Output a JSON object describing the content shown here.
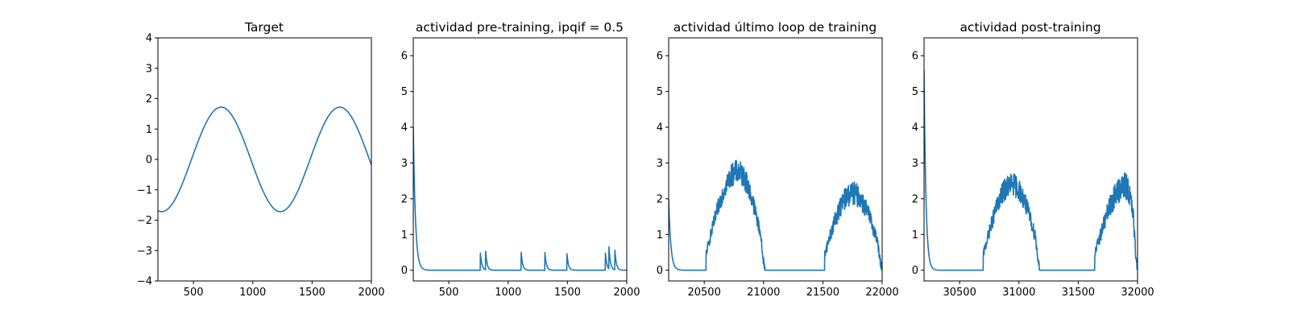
{
  "colors": {
    "line": "#1f77b4",
    "axes": "#000000",
    "background": "#ffffff"
  },
  "chart_data": [
    {
      "type": "line",
      "title": "Target",
      "xlabel": "",
      "ylabel": "",
      "xlim": [
        200,
        2000
      ],
      "ylim": [
        -4,
        4
      ],
      "xticks": [
        500,
        1000,
        1500,
        2000
      ],
      "yticks": [
        -4,
        -3,
        -2,
        -1,
        0,
        1,
        2,
        3,
        4
      ],
      "ytick_labels": [
        "−4",
        "−3",
        "−2",
        "−1",
        "0",
        "1",
        "2",
        "3",
        "4"
      ],
      "grid": false,
      "series": [
        {
          "kind": "sine",
          "amplitude": 1.72,
          "period": 1000,
          "peaks_at": [
            733,
            1733
          ],
          "troughs_at": [
            233,
            1233
          ]
        }
      ]
    },
    {
      "type": "line",
      "title": "actividad pre-training, ipqif = 0.5",
      "xlabel": "",
      "ylabel": "",
      "xlim": [
        200,
        2000
      ],
      "ylim": [
        -0.3,
        6.5
      ],
      "xticks": [
        500,
        1000,
        1500,
        2000
      ],
      "yticks": [
        0,
        1,
        2,
        3,
        4,
        5,
        6
      ],
      "ytick_labels": [
        "0",
        "1",
        "2",
        "3",
        "4",
        "5",
        "6"
      ],
      "grid": false,
      "series": [
        {
          "kind": "decay-spikes",
          "start_value": 4.0,
          "decay_tau": 18,
          "baseline": 0.0,
          "spike_times": [
            765,
            810,
            1110,
            1310,
            1495,
            1820,
            1850,
            1900
          ],
          "spike_heights": [
            0.52,
            0.52,
            0.5,
            0.5,
            0.5,
            0.48,
            0.62,
            0.55
          ],
          "spike_tau": 12
        }
      ]
    },
    {
      "type": "line",
      "title": "actividad último loop de training",
      "xlabel": "",
      "ylabel": "",
      "xlim": [
        20200,
        22000
      ],
      "ylim": [
        -0.3,
        6.5
      ],
      "xticks": [
        20500,
        21000,
        21500,
        22000
      ],
      "yticks": [
        0,
        1,
        2,
        3,
        4,
        5,
        6
      ],
      "ytick_labels": [
        "0",
        "1",
        "2",
        "3",
        "4",
        "5",
        "6"
      ],
      "grid": false,
      "series": [
        {
          "kind": "noisy-bumps",
          "start_value": 2.0,
          "decay_tau": 18,
          "bumps": [
            {
              "start": 20515,
              "end": 21010,
              "peak_at": 20780,
              "peak": 2.75,
              "noise": 0.22
            },
            {
              "start": 21515,
              "end": 21995,
              "peak_at": 21750,
              "peak": 2.15,
              "noise": 0.22
            }
          ]
        }
      ]
    },
    {
      "type": "line",
      "title": "actividad post-training",
      "xlabel": "",
      "ylabel": "",
      "xlim": [
        30200,
        32000
      ],
      "ylim": [
        -0.3,
        6.5
      ],
      "xticks": [
        30500,
        31000,
        31500,
        32000
      ],
      "yticks": [
        0,
        1,
        2,
        3,
        4,
        5,
        6
      ],
      "ytick_labels": [
        "0",
        "1",
        "2",
        "3",
        "4",
        "5",
        "6"
      ],
      "grid": false,
      "series": [
        {
          "kind": "noisy-bumps",
          "start_value": 5.6,
          "decay_tau": 16,
          "bumps": [
            {
              "start": 30700,
              "end": 31175,
              "peak_at": 30940,
              "peak": 2.4,
              "noise": 0.22
            },
            {
              "start": 31640,
              "end": 32000,
              "peak_at": 31900,
              "peak": 2.35,
              "noise": 0.25
            }
          ]
        }
      ]
    }
  ]
}
